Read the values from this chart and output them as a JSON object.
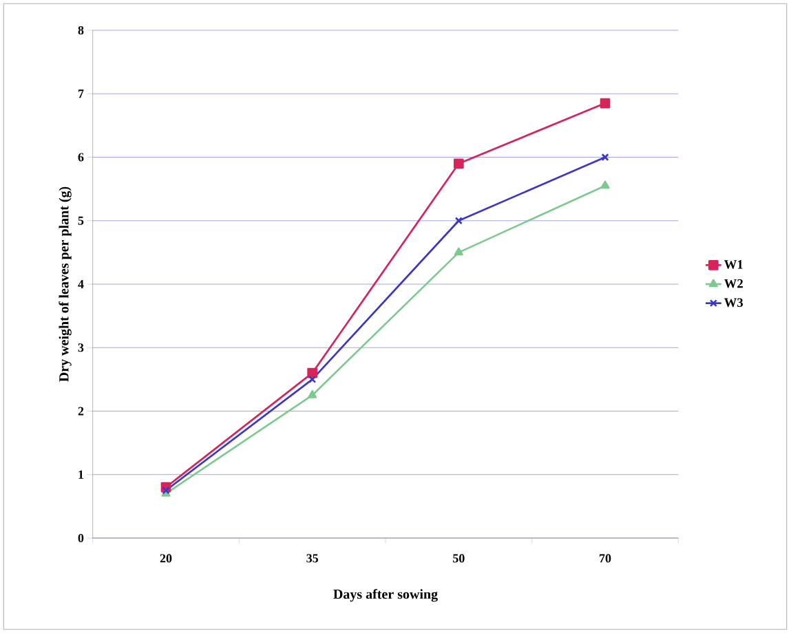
{
  "chart_data": {
    "type": "line",
    "xlabel": "Days after sowing",
    "ylabel": "Dry weight of leaves per plant (g)",
    "categories": [
      "20",
      "35",
      "50",
      "70"
    ],
    "series": [
      {
        "name": "W1",
        "color": "#d6245a",
        "marker": "square",
        "values": [
          0.8,
          2.6,
          5.9,
          6.85
        ]
      },
      {
        "name": "W2",
        "color": "#7dc98f",
        "marker": "triangle",
        "values": [
          0.7,
          2.25,
          4.5,
          5.55
        ]
      },
      {
        "name": "W3",
        "color": "#3c35c8",
        "marker": "cross",
        "values": [
          0.75,
          2.5,
          5,
          6
        ]
      }
    ],
    "ylim": [
      0,
      8
    ],
    "yticks": [
      0,
      1,
      2,
      3,
      4,
      5,
      6,
      7,
      8
    ],
    "grid": "y",
    "legend": "right",
    "line_style": "solid"
  }
}
